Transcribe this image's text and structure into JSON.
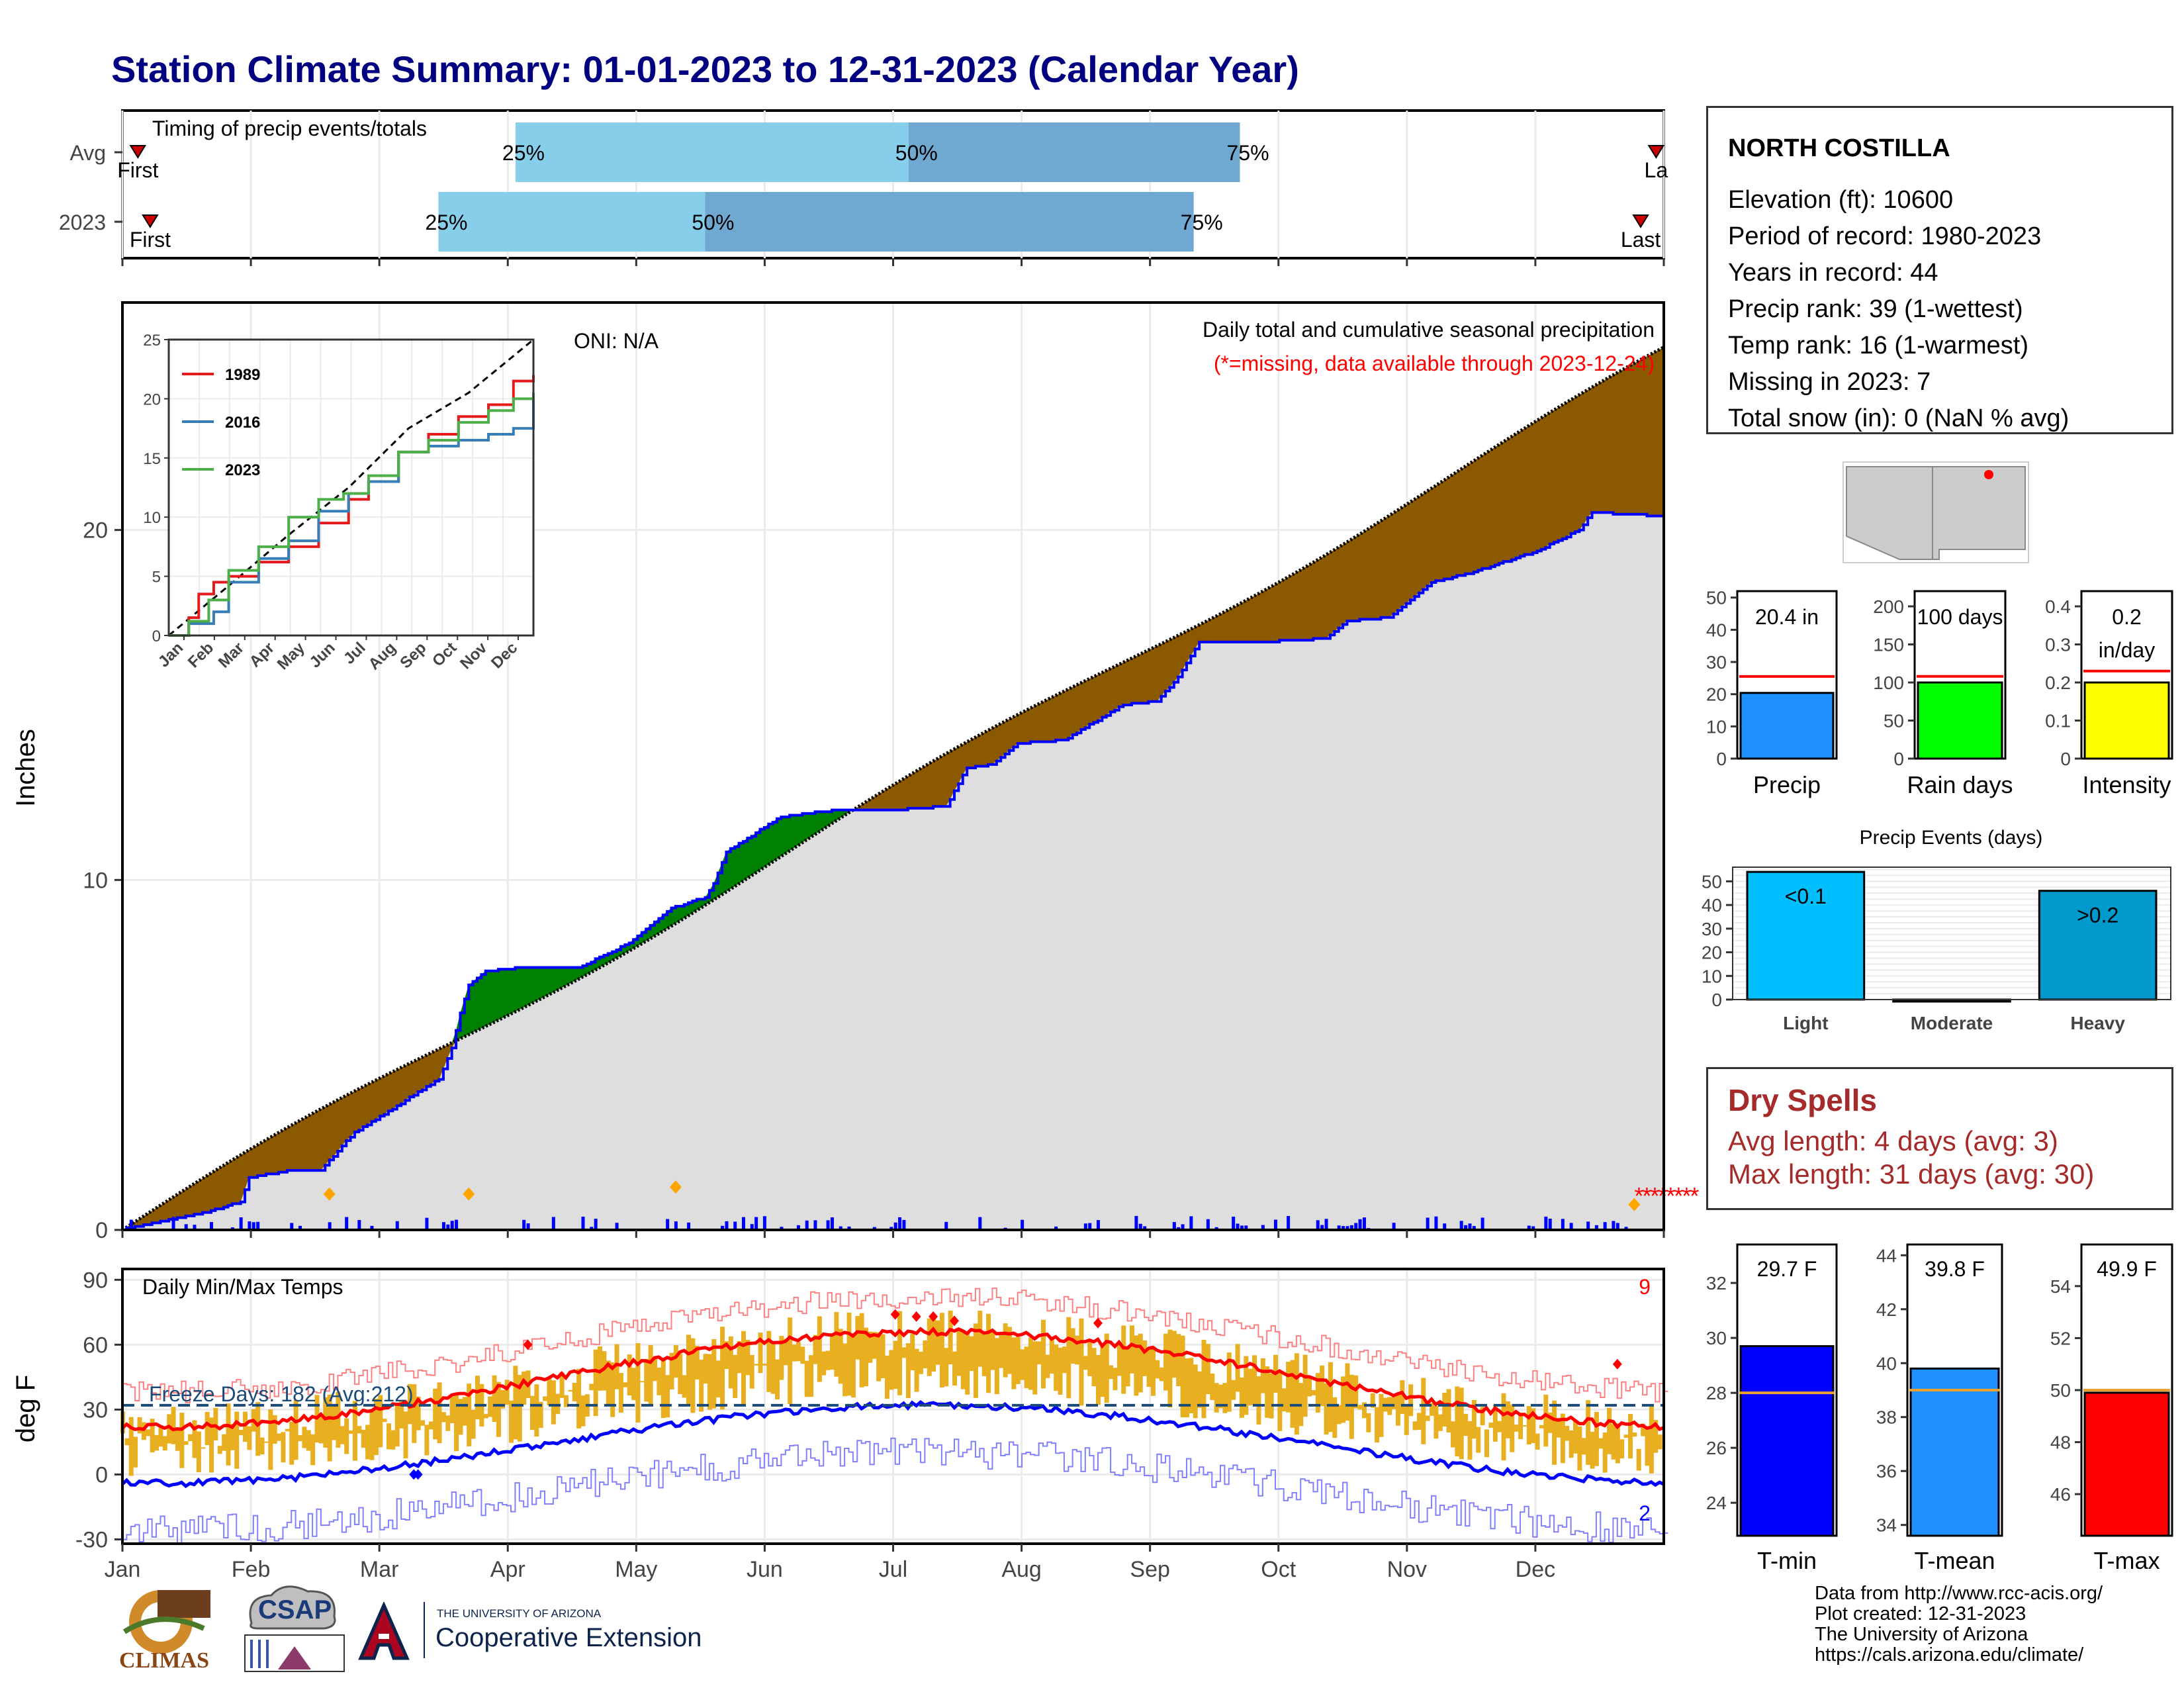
{
  "page": {
    "title": "Station Climate Summary: 01-01-2023 to 12-31-2023 (Calendar Year)"
  },
  "timing": {
    "label": "Timing of precip events/totals",
    "rows": [
      {
        "name": "Avg",
        "first_label": "First",
        "last_label": "La",
        "p25": 0.255,
        "p50": 0.51,
        "p75": 0.725,
        "first": 0.01,
        "last": 0.995,
        "pct_labels": [
          "25%",
          "50%",
          "75%"
        ]
      },
      {
        "name": "2023",
        "first_label": "First",
        "last_label": "Last",
        "p25": 0.205,
        "p50": 0.378,
        "p75": 0.695,
        "first": 0.018,
        "last": 0.985,
        "pct_labels": [
          "25%",
          "50%",
          "75%"
        ]
      }
    ],
    "colors": {
      "light": "#87ceeb",
      "dark": "#6fa8d0",
      "marker": "#cc0000"
    }
  },
  "precip": {
    "ylabel": "Inches",
    "yticks": [
      0,
      10,
      20
    ],
    "ylim": [
      0,
      26.5
    ],
    "header": "Daily total and cumulative seasonal precipitation",
    "subheader": "(*=missing, data available through 2023-12-24)",
    "oni": "ONI: N/A",
    "colors": {
      "above": "#008000",
      "below": "#8b5a00",
      "obs": "#0000ff",
      "avg": "#000000",
      "fill": "#dedede"
    },
    "obs_final": 20.4,
    "avg_final": 25.0,
    "markers": [
      {
        "day": 49,
        "value": 0.8
      },
      {
        "day": 82,
        "value": 0.8
      },
      {
        "day": 131,
        "value": 1.0
      },
      {
        "day": 358,
        "value": 0.5
      }
    ],
    "inset": {
      "yticks": [
        0,
        5,
        10,
        15,
        20,
        25
      ],
      "months": [
        "Jan",
        "Feb",
        "Mar",
        "Apr",
        "May",
        "Jun",
        "Jul",
        "Aug",
        "Sep",
        "Oct",
        "Nov",
        "Dec"
      ],
      "series": [
        {
          "name": "1989",
          "color": "#e41a1c"
        },
        {
          "name": "2016",
          "color": "#377eb8"
        },
        {
          "name": "2023",
          "color": "#4daf4a"
        }
      ]
    }
  },
  "temps": {
    "ylabel": "deg F",
    "yticks": [
      -30,
      0,
      30,
      60,
      90
    ],
    "ylim": [
      -32,
      95
    ],
    "label": "Daily Min/Max Temps",
    "freeze_label": "Freeze Days: 182 (Avg:212)",
    "count_top": "9",
    "count_bottom": "2",
    "freeze_line": 32,
    "colors": {
      "bar": "#e8b020",
      "max_avg": "#ff0000",
      "min_avg": "#0000ff",
      "rec_max": "#ff8080",
      "rec_min": "#8080ff"
    }
  },
  "months": [
    "Jan",
    "Feb",
    "Mar",
    "Apr",
    "May",
    "Jun",
    "Jul",
    "Aug",
    "Sep",
    "Oct",
    "Nov",
    "Dec"
  ],
  "station": {
    "name": "NORTH COSTILLA",
    "lines": [
      "Elevation (ft): 10600",
      "Period of record: 1980-2023",
      "Years in record: 44",
      "Precip rank: 39 (1-wettest)",
      "Temp rank: 16 (1-warmest)",
      "Missing in 2023: 7",
      "Total snow (in): 0 (NaN % avg)"
    ]
  },
  "mini_bars": [
    {
      "label": "Precip",
      "value_text": "20.4 in",
      "value": 20.4,
      "avg": 25.5,
      "ymax": 52,
      "yticks": [
        0,
        10,
        20,
        30,
        40,
        50
      ],
      "color": "#1e90ff"
    },
    {
      "label": "Rain days",
      "value_text": "100 days",
      "value": 100,
      "avg": 108,
      "ymax": 220,
      "yticks": [
        0,
        50,
        100,
        150,
        200
      ],
      "color": "#00ff00"
    },
    {
      "label": "Intensity",
      "value_text": "0.2",
      "value_text2": "in/day",
      "value": 0.2,
      "avg": 0.23,
      "ymax": 0.44,
      "yticks": [
        0.0,
        0.1,
        0.2,
        0.3,
        0.4
      ],
      "color": "#ffff00"
    }
  ],
  "events": {
    "title": "Precip Events (days)",
    "yticks": [
      0,
      10,
      20,
      30,
      40,
      50
    ],
    "ymax": 56,
    "categories": [
      "Light",
      "Moderate",
      "Heavy"
    ],
    "values": [
      54,
      0,
      46
    ],
    "labels": [
      "<0.1",
      "",
      ">0.2"
    ],
    "colors": [
      "#00bfff",
      "#00bfff",
      "#0099cc"
    ]
  },
  "dry_spells": {
    "title": "Dry Spells",
    "avg_line": "Avg length: 4 days (avg: 3)",
    "max_line": "Max length: 31 days (avg: 30)"
  },
  "temp_bars": [
    {
      "label": "T-min",
      "value_text": "29.7 F",
      "value": 29.7,
      "avg": 28.0,
      "ymin": 22.8,
      "ymax": 33.4,
      "yticks": [
        24,
        26,
        28,
        30,
        32
      ],
      "color": "#0000ff"
    },
    {
      "label": "T-mean",
      "value_text": "39.8 F",
      "value": 39.8,
      "avg": 39.0,
      "ymin": 33.6,
      "ymax": 44.4,
      "yticks": [
        34,
        36,
        38,
        40,
        42,
        44
      ],
      "color": "#1e90ff"
    },
    {
      "label": "T-max",
      "value_text": "49.9 F",
      "value": 49.9,
      "avg": 50.0,
      "ymin": 44.4,
      "ymax": 55.6,
      "yticks": [
        46,
        48,
        50,
        52,
        54
      ],
      "color": "#ff0000"
    }
  ],
  "footer": {
    "lines": [
      "Data from http://www.rcc-acis.org/",
      "Plot created: 12-31-2023",
      "The University of Arizona",
      "https://cals.arizona.edu/climate/"
    ],
    "climas": "CLIMAS",
    "csap": "CSAP",
    "ua_small": "THE UNIVERSITY OF ARIZONA",
    "ua_big": "Cooperative Extension"
  }
}
